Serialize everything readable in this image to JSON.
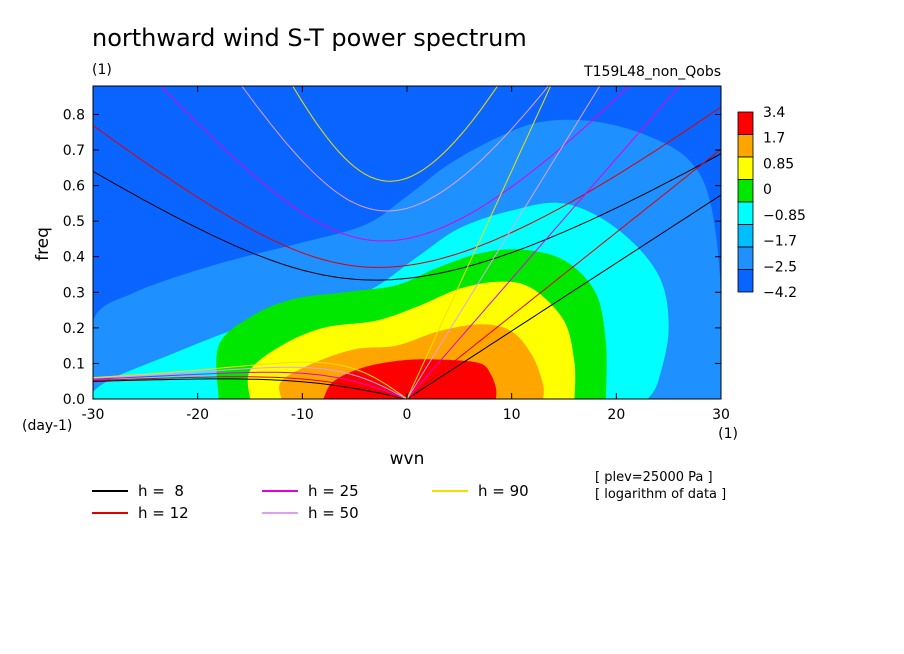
{
  "chart_data": {
    "type": "heatmap",
    "title": "northward wind S-T power spectrum",
    "units_label": "(1)",
    "run_label": "T159L48_non_Qobs",
    "xlabel": "wvn",
    "ylabel": "freq",
    "x_unit": "(1)",
    "y_unit": "(day-1)",
    "xlim": [
      -30,
      30
    ],
    "ylim": [
      0,
      0.88
    ],
    "xticks": [
      "-30",
      "-20",
      "-10",
      "0",
      "10",
      "20",
      "30"
    ],
    "yticks": [
      "0.0",
      "0.1",
      "0.2",
      "0.3",
      "0.4",
      "0.5",
      "0.6",
      "0.7",
      "0.8"
    ],
    "notes": [
      "[ plev=25000 Pa ]",
      "[ logarithm of data ]"
    ],
    "colorbar": {
      "labels": [
        "3.4",
        "1.7",
        "0.85",
        "0",
        "−0.85",
        "−1.7",
        "−2.5",
        "−4.2"
      ],
      "colors": [
        "#ff0000",
        "#ffa500",
        "#ffff00",
        "#00e800",
        "#00ffff",
        "#00bfff",
        "#1e90ff",
        "#0a64ff"
      ]
    },
    "contour_levels": [
      {
        "level": "-2.5",
        "color": "#1e90ff",
        "region": [
          [
            -30,
            0
          ],
          [
            -30,
            0.22
          ],
          [
            -26,
            0.3
          ],
          [
            -18,
            0.38
          ],
          [
            -10,
            0.44
          ],
          [
            -4,
            0.49
          ],
          [
            0,
            0.57
          ],
          [
            4,
            0.66
          ],
          [
            9,
            0.74
          ],
          [
            13,
            0.78
          ],
          [
            18,
            0.78
          ],
          [
            23,
            0.74
          ],
          [
            27,
            0.67
          ],
          [
            29,
            0.55
          ],
          [
            30,
            0.3
          ],
          [
            30,
            0
          ]
        ]
      },
      {
        "level": "-1.7",
        "color": "#00ffff",
        "region": [
          [
            -30,
            0
          ],
          [
            -30,
            0.02
          ],
          [
            -28,
            0.06
          ],
          [
            -23,
            0.12
          ],
          [
            -17,
            0.19
          ],
          [
            -10,
            0.26
          ],
          [
            -4,
            0.3
          ],
          [
            1,
            0.4
          ],
          [
            5,
            0.48
          ],
          [
            10,
            0.53
          ],
          [
            15,
            0.55
          ],
          [
            20,
            0.48
          ],
          [
            24,
            0.35
          ],
          [
            25,
            0.2
          ],
          [
            24,
            0.05
          ],
          [
            23,
            0
          ]
        ]
      },
      {
        "level": "-0.85",
        "color": "#00e800",
        "region": [
          [
            -18,
            0
          ],
          [
            -18,
            0.15
          ],
          [
            -15,
            0.23
          ],
          [
            -11,
            0.28
          ],
          [
            -6,
            0.3
          ],
          [
            -1,
            0.32
          ],
          [
            3,
            0.37
          ],
          [
            7,
            0.41
          ],
          [
            11,
            0.42
          ],
          [
            15,
            0.39
          ],
          [
            18,
            0.3
          ],
          [
            19,
            0.16
          ],
          [
            19,
            0
          ]
        ]
      },
      {
        "level": "0",
        "color": "#ffff00",
        "region": [
          [
            -15,
            0
          ],
          [
            -15,
            0.08
          ],
          [
            -12,
            0.15
          ],
          [
            -8,
            0.2
          ],
          [
            -3,
            0.22
          ],
          [
            1,
            0.26
          ],
          [
            5,
            0.31
          ],
          [
            9,
            0.33
          ],
          [
            12,
            0.31
          ],
          [
            15,
            0.22
          ],
          [
            16,
            0.1
          ],
          [
            16,
            0
          ]
        ]
      },
      {
        "level": "0.85",
        "color": "#ffa500",
        "region": [
          [
            -12,
            0
          ],
          [
            -12,
            0.05
          ],
          [
            -9,
            0.1
          ],
          [
            -5,
            0.14
          ],
          [
            -1,
            0.15
          ],
          [
            3,
            0.19
          ],
          [
            7,
            0.21
          ],
          [
            10,
            0.19
          ],
          [
            12,
            0.12
          ],
          [
            13,
            0.04
          ],
          [
            13,
            0
          ]
        ]
      },
      {
        "level": "1.7",
        "color": "#ff0000",
        "region": [
          [
            -8,
            0
          ],
          [
            -7,
            0.05
          ],
          [
            -4,
            0.09
          ],
          [
            0,
            0.11
          ],
          [
            4,
            0.11
          ],
          [
            7,
            0.1
          ],
          [
            8,
            0.07
          ],
          [
            8.5,
            0.03
          ],
          [
            8.5,
            0
          ]
        ]
      }
    ],
    "dispersion_curves": [
      {
        "name": "h =  8",
        "color": "#000000"
      },
      {
        "name": "h = 12",
        "color": "#e00000"
      },
      {
        "name": "h = 25",
        "color": "#e000e0"
      },
      {
        "name": "h = 50",
        "color": "#e0a0f0"
      },
      {
        "name": "h = 90",
        "color": "#f0e000"
      }
    ],
    "grid": false,
    "legend_position": "bottom"
  }
}
